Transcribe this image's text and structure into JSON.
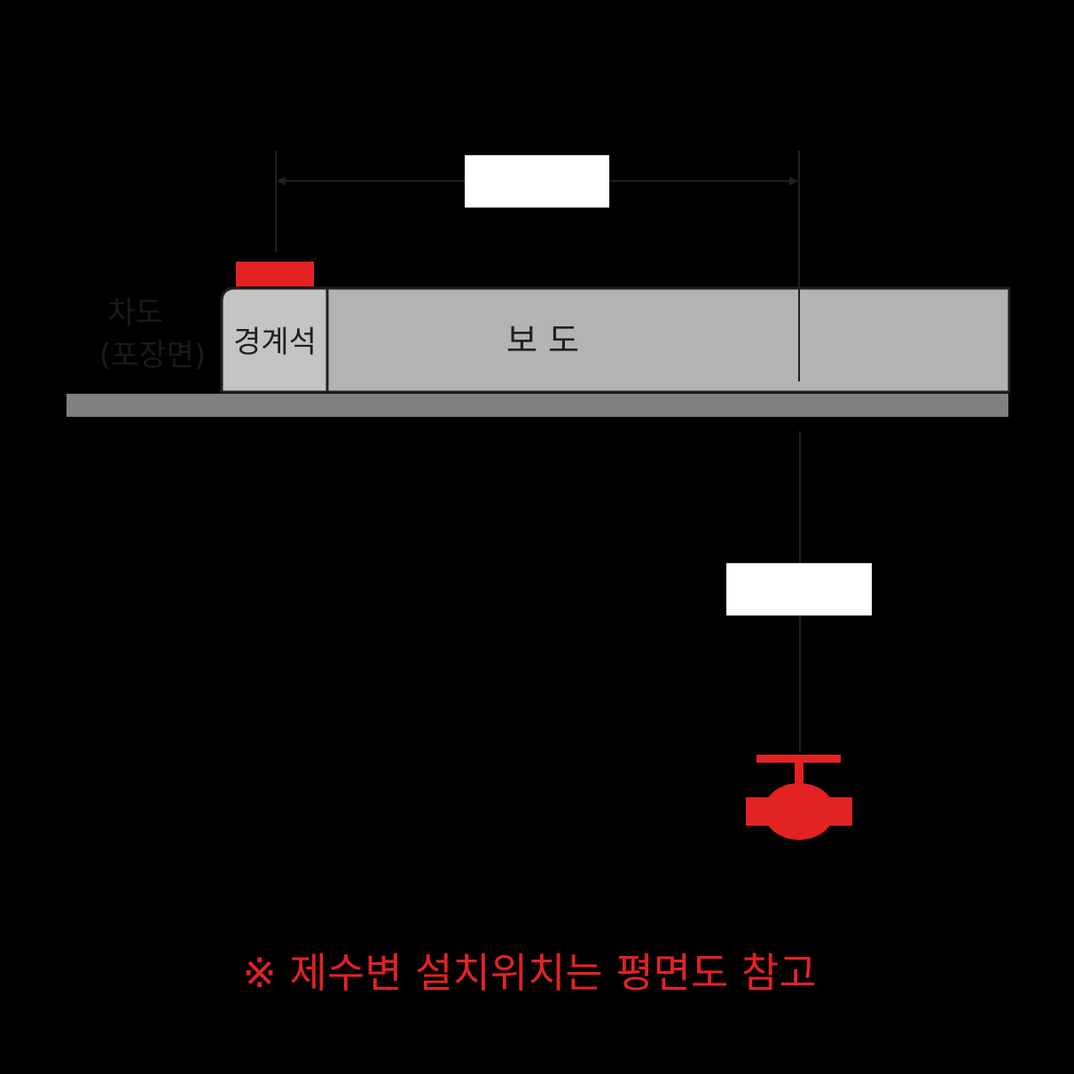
{
  "labels": {
    "roadway": [
      "차도",
      "(포장면)"
    ],
    "curb": "경계석",
    "sidewalk": "보 도",
    "dimension_top": "",
    "dimension_vertical": "",
    "note": "※ 제수변 설치위치는 평면도 참고"
  },
  "icons": {
    "curb_marker": "red-bar-marker",
    "valve": "gate-valve-icon"
  },
  "colors": {
    "background": "#000000",
    "accent_red": "#e32224",
    "sidewalk_fill": "#b3b3b3",
    "base_layer": "#808080",
    "dimension_box": "#ffffff",
    "line": "#231f20",
    "roadway_text": "#1a1a1a"
  }
}
